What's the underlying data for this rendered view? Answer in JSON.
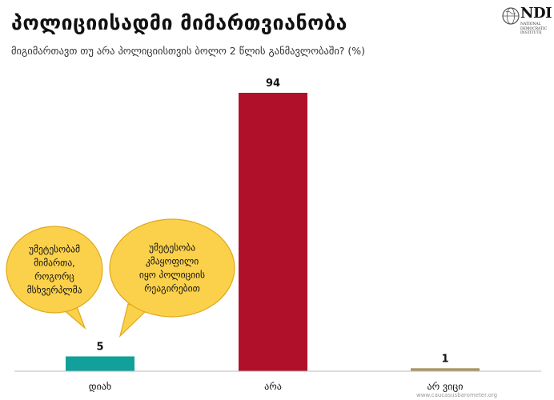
{
  "header": {
    "title": "პოლიციისადმი მიმართვიანობა",
    "subtitle": "მიგიმართავთ თუ არა პოლიციისთვის ბოლო 2 წლის განმავლობაში? (%)"
  },
  "logo": {
    "name": "NDI",
    "sub": "NATIONAL DEMOCRATIC INSTITUTE"
  },
  "chart_data": {
    "type": "bar",
    "title": "პოლიციისადმი მიმართვიანობა",
    "subtitle": "მიგიმართავთ თუ არა პოლიციისთვის ბოლო 2 წლის განმავლობაში? (%)",
    "categories": [
      "დიახ",
      "არა",
      "არ ვიცი"
    ],
    "values": [
      5,
      94,
      1
    ],
    "colors": [
      "#12a09a",
      "#b0102a",
      "#a89660"
    ],
    "ylim": [
      0,
      100
    ],
    "grid": false,
    "legend": "none",
    "annotations": [
      {
        "lines": [
          "უმეტესობამ",
          "მიმართა,",
          "როგორც",
          "მსხვერპლმა"
        ],
        "target": "დიახ"
      },
      {
        "lines": [
          "უმეტესობა",
          "კმაყოფილი",
          "იყო პოლიციის",
          "რეაგირებით"
        ],
        "target": "დიახ"
      }
    ]
  },
  "footer": {
    "text": "www.caucasusbarometer.org"
  }
}
